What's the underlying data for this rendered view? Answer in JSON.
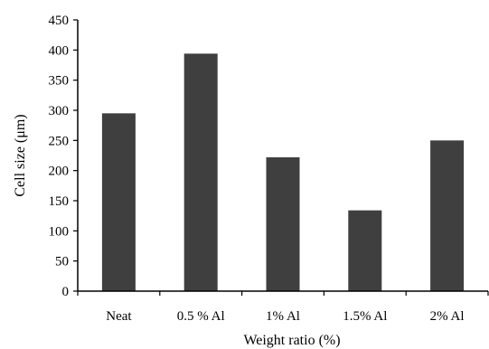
{
  "chart_data": {
    "type": "bar",
    "title": "",
    "xlabel": "Weight ratio (%)",
    "ylabel": "Cell size (μm)",
    "categories": [
      "Neat",
      "0.5 % Al",
      "1% Al",
      "1.5% Al",
      "2% Al"
    ],
    "values": [
      295,
      394,
      222,
      134,
      250
    ],
    "ylim": [
      0,
      450
    ],
    "yticks": [
      0,
      50,
      100,
      150,
      200,
      250,
      300,
      350,
      400,
      450
    ],
    "grid": false,
    "legend": "none",
    "bar_color": "#3f3f3f"
  }
}
